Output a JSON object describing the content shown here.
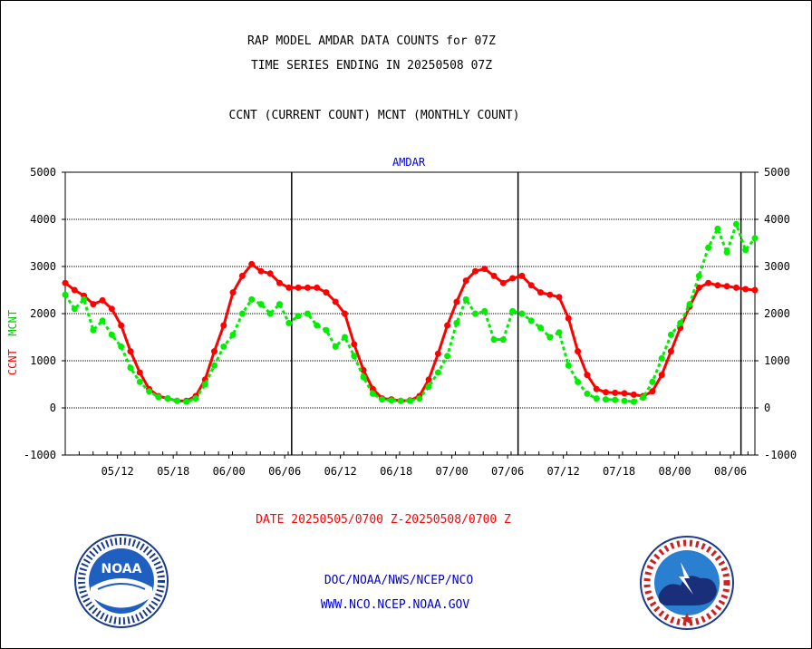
{
  "title_line1": "RAP MODEL AMDAR DATA COUNTS for 07Z",
  "title_line2": "TIME SERIES ENDING IN 20250508 07Z",
  "subtitle": "CCNT (CURRENT COUNT) MCNT (MONTHLY COUNT)",
  "plot_label": "AMDAR",
  "ylabel_ccnt": "CCNT",
  "ylabel_mcnt": "MCNT",
  "date_range": "DATE 20250505/0700 Z-20250508/0700 Z",
  "credit_line1": "DOC/NOAA/NWS/NCEP/NCO",
  "credit_line2": "WWW.NCO.NCEP.NOAA.GOV",
  "logo_left_text": "NOAA",
  "colors": {
    "ccnt": "#ff0000",
    "mcnt": "#00ee00",
    "label_blue": "#0000cc"
  },
  "chart_data": {
    "type": "line",
    "ylim": [
      -1000,
      5000
    ],
    "yticks": [
      -1000,
      0,
      1000,
      2000,
      3000,
      4000,
      5000
    ],
    "xlim": [
      0,
      99
    ],
    "xtick_labels": [
      {
        "x": 7.5,
        "label": "05/12"
      },
      {
        "x": 15.5,
        "label": "05/18"
      },
      {
        "x": 23.5,
        "label": "06/00"
      },
      {
        "x": 31.5,
        "label": "06/06"
      },
      {
        "x": 39.5,
        "label": "06/12"
      },
      {
        "x": 47.5,
        "label": "06/18"
      },
      {
        "x": 55.5,
        "label": "07/00"
      },
      {
        "x": 63.5,
        "label": "07/06"
      },
      {
        "x": 71.5,
        "label": "07/12"
      },
      {
        "x": 79.5,
        "label": "07/18"
      },
      {
        "x": 87.5,
        "label": "08/00"
      },
      {
        "x": 95.5,
        "label": "08/06"
      }
    ],
    "day_boundaries": [
      32.5,
      65,
      97
    ],
    "grid": true,
    "series": [
      {
        "name": "CCNT",
        "values": [
          2650,
          2500,
          2380,
          2200,
          2280,
          2100,
          1750,
          1200,
          750,
          400,
          250,
          200,
          150,
          150,
          250,
          600,
          1200,
          1750,
          2450,
          2800,
          3050,
          2900,
          2850,
          2650,
          2550,
          2550,
          2550,
          2550,
          2450,
          2250,
          2000,
          1350,
          800,
          400,
          200,
          180,
          150,
          160,
          250,
          600,
          1150,
          1750,
          2250,
          2700,
          2900,
          2950,
          2800,
          2650,
          2750,
          2800,
          2600,
          2450,
          2400,
          2350,
          1900,
          1200,
          700,
          400,
          330,
          320,
          310,
          280,
          250,
          350,
          700,
          1200,
          1700,
          2150,
          2550,
          2650,
          2600,
          2580,
          2550,
          2520,
          2500
        ]
      },
      {
        "name": "MCNT",
        "values": [
          2400,
          2100,
          2300,
          1650,
          1850,
          1550,
          1300,
          850,
          550,
          350,
          230,
          200,
          150,
          130,
          200,
          500,
          900,
          1300,
          1550,
          2000,
          2300,
          2200,
          2000,
          2200,
          1800,
          1950,
          2000,
          1750,
          1650,
          1300,
          1500,
          1100,
          650,
          300,
          180,
          160,
          150,
          150,
          200,
          450,
          750,
          1100,
          1800,
          2300,
          2000,
          2050,
          1450,
          1450,
          2050,
          2000,
          1850,
          1700,
          1500,
          1600,
          900,
          550,
          300,
          200,
          180,
          170,
          150,
          130,
          220,
          550,
          1050,
          1550,
          1800,
          2200,
          2800,
          3400,
          3800,
          3300,
          3900,
          3350,
          3600
        ]
      }
    ]
  }
}
